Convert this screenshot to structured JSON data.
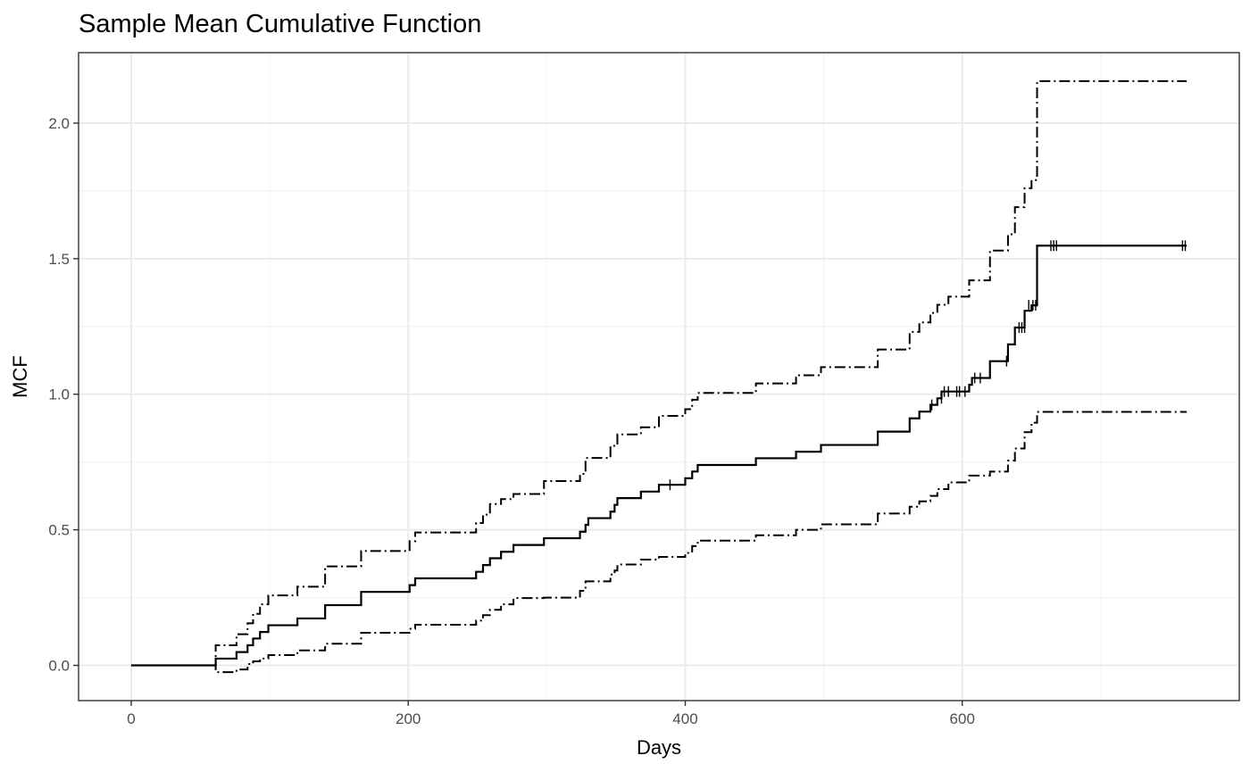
{
  "chart_data": {
    "type": "line",
    "title": "Sample Mean Cumulative Function",
    "xlabel": "Days",
    "ylabel": "MCF",
    "xlim": [
      -38,
      800
    ],
    "ylim": [
      -0.13,
      2.26
    ],
    "x_ticks": [
      0,
      200,
      400,
      600
    ],
    "x_tick_labels": [
      "0",
      "200",
      "400",
      "600"
    ],
    "y_ticks": [
      0,
      0.5,
      1,
      1.5,
      2
    ],
    "y_tick_labels": [
      "0.0",
      "0.5",
      "1.0",
      "1.5",
      "2.0"
    ],
    "grid": true,
    "series": [
      {
        "style": "solid",
        "step_points": [
          [
            0,
            0
          ],
          [
            61,
            0
          ],
          [
            61,
            0.025
          ],
          [
            76,
            0.025
          ],
          [
            76,
            0.049
          ],
          [
            84,
            0.049
          ],
          [
            84,
            0.074
          ],
          [
            88,
            0.074
          ],
          [
            88,
            0.099
          ],
          [
            93,
            0.099
          ],
          [
            93,
            0.123
          ],
          [
            99,
            0.123
          ],
          [
            99,
            0.148
          ],
          [
            120,
            0.148
          ],
          [
            120,
            0.173
          ],
          [
            140,
            0.173
          ],
          [
            140,
            0.222
          ],
          [
            166,
            0.222
          ],
          [
            166,
            0.271
          ],
          [
            201,
            0.271
          ],
          [
            201,
            0.296
          ],
          [
            205,
            0.296
          ],
          [
            205,
            0.321
          ],
          [
            249,
            0.321
          ],
          [
            249,
            0.345
          ],
          [
            254,
            0.345
          ],
          [
            254,
            0.37
          ],
          [
            259,
            0.37
          ],
          [
            259,
            0.395
          ],
          [
            267,
            0.395
          ],
          [
            267,
            0.419
          ],
          [
            276,
            0.419
          ],
          [
            276,
            0.444
          ],
          [
            298,
            0.444
          ],
          [
            298,
            0.469
          ],
          [
            324,
            0.469
          ],
          [
            324,
            0.493
          ],
          [
            328,
            0.493
          ],
          [
            328,
            0.518
          ],
          [
            330,
            0.518
          ],
          [
            330,
            0.543
          ],
          [
            346,
            0.543
          ],
          [
            346,
            0.567
          ],
          [
            349,
            0.567
          ],
          [
            349,
            0.592
          ],
          [
            351,
            0.592
          ],
          [
            351,
            0.617
          ],
          [
            368,
            0.617
          ],
          [
            368,
            0.641
          ],
          [
            381,
            0.641
          ],
          [
            381,
            0.666
          ],
          [
            400,
            0.666
          ],
          [
            400,
            0.69
          ],
          [
            405,
            0.69
          ],
          [
            405,
            0.715
          ],
          [
            409,
            0.715
          ],
          [
            409,
            0.739
          ],
          [
            451,
            0.739
          ],
          [
            451,
            0.764
          ],
          [
            480,
            0.764
          ],
          [
            480,
            0.788
          ],
          [
            498,
            0.788
          ],
          [
            498,
            0.813
          ],
          [
            539,
            0.813
          ],
          [
            539,
            0.862
          ],
          [
            562,
            0.862
          ],
          [
            562,
            0.911
          ],
          [
            569,
            0.911
          ],
          [
            569,
            0.936
          ],
          [
            577,
            0.936
          ],
          [
            577,
            0.961
          ],
          [
            582,
            0.961
          ],
          [
            582,
            0.985
          ],
          [
            585,
            0.985
          ],
          [
            585,
            1.01
          ],
          [
            605,
            1.01
          ],
          [
            605,
            1.035
          ],
          [
            607,
            1.035
          ],
          [
            607,
            1.06
          ],
          [
            620,
            1.06
          ],
          [
            620,
            1.122
          ],
          [
            633,
            1.122
          ],
          [
            633,
            1.184
          ],
          [
            638,
            1.184
          ],
          [
            638,
            1.246
          ],
          [
            645,
            1.246
          ],
          [
            645,
            1.308
          ],
          [
            650,
            1.308
          ],
          [
            650,
            1.328
          ],
          [
            654,
            1.328
          ],
          [
            654,
            1.548
          ],
          [
            762,
            1.548
          ]
        ]
      },
      {
        "style": "dashdot",
        "step_points": [
          [
            0,
            0
          ],
          [
            61,
            0
          ],
          [
            61,
            0.074
          ],
          [
            76,
            0.074
          ],
          [
            76,
            0.115
          ],
          [
            84,
            0.115
          ],
          [
            84,
            0.155
          ],
          [
            88,
            0.155
          ],
          [
            88,
            0.19
          ],
          [
            93,
            0.19
          ],
          [
            93,
            0.225
          ],
          [
            99,
            0.225
          ],
          [
            99,
            0.258
          ],
          [
            120,
            0.258
          ],
          [
            120,
            0.29
          ],
          [
            140,
            0.29
          ],
          [
            140,
            0.365
          ],
          [
            166,
            0.365
          ],
          [
            166,
            0.422
          ],
          [
            201,
            0.422
          ],
          [
            201,
            0.458
          ],
          [
            205,
            0.458
          ],
          [
            205,
            0.49
          ],
          [
            249,
            0.49
          ],
          [
            249,
            0.525
          ],
          [
            254,
            0.525
          ],
          [
            254,
            0.556
          ],
          [
            259,
            0.556
          ],
          [
            259,
            0.595
          ],
          [
            267,
            0.595
          ],
          [
            267,
            0.613
          ],
          [
            276,
            0.613
          ],
          [
            276,
            0.632
          ],
          [
            298,
            0.632
          ],
          [
            298,
            0.68
          ],
          [
            324,
            0.68
          ],
          [
            324,
            0.706
          ],
          [
            328,
            0.706
          ],
          [
            328,
            0.765
          ],
          [
            346,
            0.765
          ],
          [
            346,
            0.81
          ],
          [
            351,
            0.81
          ],
          [
            351,
            0.852
          ],
          [
            368,
            0.852
          ],
          [
            368,
            0.878
          ],
          [
            381,
            0.878
          ],
          [
            381,
            0.92
          ],
          [
            400,
            0.92
          ],
          [
            400,
            0.945
          ],
          [
            405,
            0.945
          ],
          [
            405,
            0.98
          ],
          [
            409,
            0.98
          ],
          [
            409,
            1.005
          ],
          [
            451,
            1.005
          ],
          [
            451,
            1.04
          ],
          [
            480,
            1.04
          ],
          [
            480,
            1.07
          ],
          [
            498,
            1.07
          ],
          [
            498,
            1.1
          ],
          [
            539,
            1.1
          ],
          [
            539,
            1.165
          ],
          [
            562,
            1.165
          ],
          [
            562,
            1.23
          ],
          [
            569,
            1.23
          ],
          [
            569,
            1.265
          ],
          [
            577,
            1.265
          ],
          [
            577,
            1.3
          ],
          [
            582,
            1.3
          ],
          [
            582,
            1.33
          ],
          [
            590,
            1.33
          ],
          [
            590,
            1.36
          ],
          [
            605,
            1.36
          ],
          [
            605,
            1.42
          ],
          [
            620,
            1.42
          ],
          [
            620,
            1.53
          ],
          [
            633,
            1.53
          ],
          [
            633,
            1.59
          ],
          [
            638,
            1.59
          ],
          [
            638,
            1.69
          ],
          [
            645,
            1.69
          ],
          [
            645,
            1.76
          ],
          [
            650,
            1.76
          ],
          [
            650,
            1.79
          ],
          [
            654,
            1.79
          ],
          [
            654,
            2.155
          ],
          [
            762,
            2.155
          ]
        ]
      },
      {
        "style": "dashdot",
        "step_points": [
          [
            0,
            0
          ],
          [
            61,
            0
          ],
          [
            61,
            -0.025
          ],
          [
            76,
            -0.025
          ],
          [
            76,
            -0.015
          ],
          [
            84,
            -0.015
          ],
          [
            84,
            0.005
          ],
          [
            88,
            0.005
          ],
          [
            88,
            0.015
          ],
          [
            93,
            0.015
          ],
          [
            93,
            0.025
          ],
          [
            99,
            0.025
          ],
          [
            99,
            0.038
          ],
          [
            120,
            0.038
          ],
          [
            120,
            0.055
          ],
          [
            140,
            0.055
          ],
          [
            140,
            0.08
          ],
          [
            166,
            0.08
          ],
          [
            166,
            0.12
          ],
          [
            201,
            0.12
          ],
          [
            201,
            0.135
          ],
          [
            205,
            0.135
          ],
          [
            205,
            0.15
          ],
          [
            249,
            0.15
          ],
          [
            249,
            0.165
          ],
          [
            254,
            0.165
          ],
          [
            254,
            0.185
          ],
          [
            259,
            0.185
          ],
          [
            259,
            0.205
          ],
          [
            267,
            0.205
          ],
          [
            267,
            0.225
          ],
          [
            276,
            0.225
          ],
          [
            276,
            0.248
          ],
          [
            298,
            0.248
          ],
          [
            298,
            0.25
          ],
          [
            324,
            0.25
          ],
          [
            324,
            0.275
          ],
          [
            328,
            0.275
          ],
          [
            328,
            0.31
          ],
          [
            346,
            0.31
          ],
          [
            346,
            0.335
          ],
          [
            349,
            0.335
          ],
          [
            349,
            0.35
          ],
          [
            351,
            0.35
          ],
          [
            351,
            0.372
          ],
          [
            368,
            0.372
          ],
          [
            368,
            0.39
          ],
          [
            381,
            0.39
          ],
          [
            381,
            0.4
          ],
          [
            400,
            0.4
          ],
          [
            400,
            0.415
          ],
          [
            405,
            0.415
          ],
          [
            405,
            0.44
          ],
          [
            409,
            0.44
          ],
          [
            409,
            0.46
          ],
          [
            451,
            0.46
          ],
          [
            451,
            0.48
          ],
          [
            480,
            0.48
          ],
          [
            480,
            0.5
          ],
          [
            498,
            0.5
          ],
          [
            498,
            0.52
          ],
          [
            539,
            0.52
          ],
          [
            539,
            0.56
          ],
          [
            562,
            0.56
          ],
          [
            562,
            0.585
          ],
          [
            569,
            0.585
          ],
          [
            569,
            0.605
          ],
          [
            577,
            0.605
          ],
          [
            577,
            0.625
          ],
          [
            582,
            0.625
          ],
          [
            582,
            0.65
          ],
          [
            590,
            0.65
          ],
          [
            590,
            0.675
          ],
          [
            605,
            0.675
          ],
          [
            605,
            0.7
          ],
          [
            620,
            0.7
          ],
          [
            620,
            0.715
          ],
          [
            633,
            0.715
          ],
          [
            633,
            0.755
          ],
          [
            638,
            0.755
          ],
          [
            638,
            0.8
          ],
          [
            645,
            0.8
          ],
          [
            645,
            0.86
          ],
          [
            650,
            0.86
          ],
          [
            650,
            0.895
          ],
          [
            654,
            0.895
          ],
          [
            654,
            0.935
          ],
          [
            762,
            0.935
          ]
        ]
      }
    ],
    "censor_marks": [
      [
        389,
        0.666
      ],
      [
        578,
        0.961
      ],
      [
        585,
        0.985
      ],
      [
        587,
        1.01
      ],
      [
        590,
        1.01
      ],
      [
        596,
        1.01
      ],
      [
        598,
        1.01
      ],
      [
        602,
        1.01
      ],
      [
        609,
        1.06
      ],
      [
        613,
        1.06
      ],
      [
        632,
        1.122
      ],
      [
        641,
        1.246
      ],
      [
        643,
        1.246
      ],
      [
        645,
        1.246
      ],
      [
        648,
        1.328
      ],
      [
        651,
        1.328
      ],
      [
        653,
        1.328
      ],
      [
        664,
        1.548
      ],
      [
        666,
        1.548
      ],
      [
        668,
        1.548
      ],
      [
        759,
        1.548
      ],
      [
        761,
        1.548
      ]
    ]
  }
}
